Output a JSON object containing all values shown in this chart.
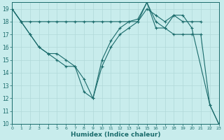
{
  "xlabel": "Humidex (Indice chaleur)",
  "bg_color": "#c8ecec",
  "grid_color": "#b0d8d8",
  "line_color": "#1a6b6b",
  "xlim": [
    0,
    23
  ],
  "ylim": [
    10,
    19.5
  ],
  "yticks": [
    10,
    11,
    12,
    13,
    14,
    15,
    16,
    17,
    18,
    19
  ],
  "xticks": [
    0,
    1,
    2,
    3,
    4,
    5,
    6,
    7,
    8,
    9,
    10,
    11,
    12,
    13,
    14,
    15,
    16,
    17,
    18,
    19,
    20,
    21,
    22,
    23
  ],
  "line1_x": [
    0,
    1,
    2,
    3,
    4,
    5,
    6,
    7,
    8,
    9,
    10,
    11,
    12,
    13,
    14,
    15,
    16,
    17,
    18,
    19,
    20,
    21
  ],
  "line1_y": [
    19,
    18,
    18,
    18,
    18,
    18,
    18,
    18,
    18,
    18,
    18,
    18,
    18,
    18,
    18,
    19,
    18.5,
    18,
    18.5,
    18,
    18,
    18
  ],
  "line2_x": [
    0,
    1,
    2,
    3,
    4,
    5,
    6,
    7,
    8,
    9,
    10,
    11,
    12,
    13,
    14,
    15,
    16,
    17,
    18,
    19,
    20,
    21,
    22,
    23
  ],
  "line2_y": [
    19,
    18,
    17,
    16,
    15.5,
    15,
    14.5,
    14.5,
    13.5,
    12,
    14.5,
    16,
    17,
    17.5,
    18,
    19.5,
    18,
    17.5,
    17,
    17,
    17,
    17,
    11.5,
    10
  ],
  "line3_x": [
    0,
    1,
    2,
    3,
    4,
    5,
    6,
    7,
    8,
    9,
    10,
    11,
    12,
    13,
    14,
    15,
    16,
    17,
    18,
    19,
    20,
    22,
    23
  ],
  "line3_y": [
    19,
    18,
    17,
    16,
    15.5,
    15.5,
    15,
    14.5,
    12.5,
    12,
    15,
    16.5,
    17.5,
    18,
    18.2,
    19.5,
    17.5,
    17.5,
    18.5,
    18.5,
    17.5,
    11.5,
    10
  ]
}
